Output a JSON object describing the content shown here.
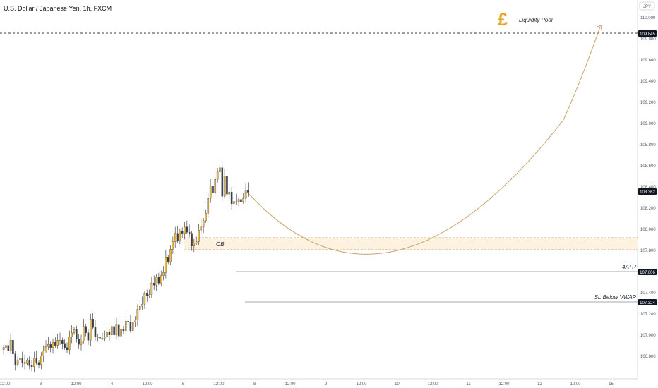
{
  "header": {
    "title": "U.S. Dollar / Japanese Yen, 1h, FXCM"
  },
  "price_axis": {
    "currency": "JPY",
    "ticks": [
      "110.000",
      "109.800",
      "109.600",
      "109.400",
      "109.200",
      "109.000",
      "108.800",
      "108.600",
      "108.400",
      "108.200",
      "108.000",
      "107.800",
      "107.600",
      "107.400",
      "107.200",
      "107.000",
      "106.800"
    ]
  },
  "time_axis": {
    "ticks": [
      "12:00",
      "3",
      "12:00",
      "4",
      "12:00",
      "5",
      "12:00",
      "8",
      "12:00",
      "9",
      "12:00",
      "10",
      "12:00",
      "11",
      "12:00",
      "12",
      "12:00",
      "15"
    ]
  },
  "annotations": {
    "pool_symbol": "£",
    "pool_label": "Liquidity Pool",
    "ob_label": "OB",
    "atr_label": "4ATR",
    "sl_label": "SL Below VWAP"
  },
  "badges": {
    "pool_price": "109.845",
    "last_price": "108.362",
    "atr_price": "107.606",
    "sl_price": "107.324"
  },
  "colors": {
    "up": "#f0b93c",
    "down": "#3c3f47",
    "curve": "#c9a36a",
    "ob_fill": "#fdf1e0",
    "pound": "#e6a522"
  },
  "chart_data": {
    "type": "candlestick",
    "title": "U.S. Dollar / Japanese Yen, 1h, FXCM",
    "ylim": [
      106.7,
      110.25
    ],
    "y_unit": "JPY",
    "levels": {
      "liquidity_pool": 109.845,
      "last": 108.362,
      "atr_4": 107.606,
      "sl_below_vwap": 107.324,
      "ob_zone": [
        107.81,
        107.92
      ]
    },
    "projection": {
      "from": 108.36,
      "low": 107.7,
      "to": 109.93
    },
    "close": [
      106.88,
      106.9,
      106.85,
      106.95,
      106.82,
      106.72,
      106.76,
      106.78,
      106.74,
      106.73,
      106.76,
      106.71,
      106.7,
      106.78,
      106.74,
      106.72,
      106.8,
      106.85,
      106.89,
      106.91,
      106.88,
      106.93,
      106.9,
      106.95,
      106.95,
      106.92,
      106.88,
      106.86,
      106.98,
      107.02,
      107.05,
      106.96,
      106.91,
      106.94,
      107.08,
      107.02,
      106.95,
      107.15,
      107.07,
      106.98,
      106.98,
      106.97,
      106.97,
      106.98,
      107.03,
      107.0,
      107.08,
      107.0,
      107.1,
      106.99,
      107.05,
      107.04,
      107.13,
      107.12,
      107.04,
      107.12,
      107.14,
      107.24,
      107.27,
      107.29,
      107.39,
      107.37,
      107.38,
      107.49,
      107.47,
      107.55,
      107.49,
      107.56,
      107.59,
      107.73,
      107.69,
      107.81,
      107.88,
      107.96,
      107.89,
      107.98,
      107.96,
      108.02,
      107.97,
      107.96,
      107.84,
      107.87,
      107.88,
      107.99,
      108.02,
      108.08,
      108.15,
      108.29,
      108.41,
      108.34,
      108.47,
      108.54,
      108.58,
      108.31,
      108.5,
      108.33,
      108.35,
      108.24,
      108.26,
      108.26,
      108.28,
      108.26,
      108.29,
      108.37,
      108.35
    ],
    "x_ticks": [
      "12:00",
      "3",
      "12:00",
      "4",
      "12:00",
      "5",
      "12:00",
      "8",
      "12:00",
      "9",
      "12:00",
      "10",
      "12:00",
      "11",
      "12:00",
      "12",
      "12:00",
      "15"
    ],
    "y_ticks": [
      110.0,
      109.8,
      109.6,
      109.4,
      109.2,
      109.0,
      108.8,
      108.6,
      108.4,
      108.2,
      108.0,
      107.8,
      107.6,
      107.4,
      107.2,
      107.0,
      106.8
    ]
  }
}
